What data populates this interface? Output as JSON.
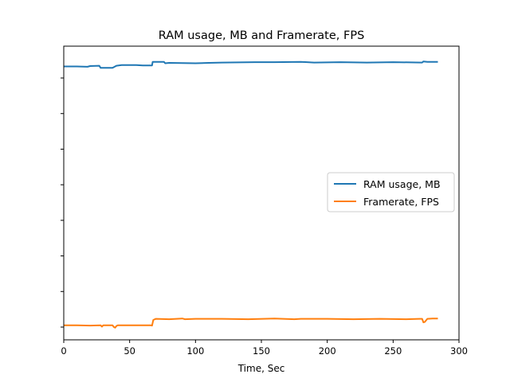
{
  "chart_data": {
    "type": "line",
    "title": "RAM usage, MB and Framerate, FPS",
    "xlabel": "Time, Sec",
    "ylabel": "",
    "xlim": [
      0,
      300
    ],
    "ylim": [
      -3.5,
      79
    ],
    "x_ticks": [
      0,
      50,
      100,
      150,
      200,
      250,
      300
    ],
    "y_ticks_count": 8,
    "y_tick_labels_shown": false,
    "grid": false,
    "legend_position": "center-right",
    "series": [
      {
        "name": "RAM usage, MB",
        "color": "#1f77b4",
        "points": [
          [
            0,
            73.3
          ],
          [
            10,
            73.3
          ],
          [
            18,
            73.2
          ],
          [
            20,
            73.4
          ],
          [
            27,
            73.5
          ],
          [
            28,
            72.9
          ],
          [
            37,
            72.9
          ],
          [
            40,
            73.5
          ],
          [
            44,
            73.7
          ],
          [
            55,
            73.7
          ],
          [
            60,
            73.6
          ],
          [
            67,
            73.6
          ],
          [
            67.5,
            74.6
          ],
          [
            76,
            74.6
          ],
          [
            77,
            74.2
          ],
          [
            80,
            74.3
          ],
          [
            100,
            74.2
          ],
          [
            110,
            74.3
          ],
          [
            120,
            74.4
          ],
          [
            145,
            74.5
          ],
          [
            160,
            74.5
          ],
          [
            180,
            74.6
          ],
          [
            190,
            74.4
          ],
          [
            210,
            74.5
          ],
          [
            230,
            74.4
          ],
          [
            250,
            74.5
          ],
          [
            272,
            74.4
          ],
          [
            273,
            74.7
          ],
          [
            276,
            74.6
          ],
          [
            284,
            74.6
          ]
        ]
      },
      {
        "name": "Framerate, FPS",
        "color": "#ff7f0e",
        "points": [
          [
            0,
            0.6
          ],
          [
            10,
            0.6
          ],
          [
            20,
            0.5
          ],
          [
            28,
            0.6
          ],
          [
            29,
            0.2
          ],
          [
            30,
            0.6
          ],
          [
            37,
            0.6
          ],
          [
            38,
            0.1
          ],
          [
            39,
            -0.1
          ],
          [
            40,
            0.4
          ],
          [
            41,
            0.6
          ],
          [
            55,
            0.6
          ],
          [
            66,
            0.6
          ],
          [
            67,
            0.5
          ],
          [
            68,
            2.1
          ],
          [
            70,
            2.4
          ],
          [
            80,
            2.3
          ],
          [
            90,
            2.5
          ],
          [
            92,
            2.3
          ],
          [
            100,
            2.4
          ],
          [
            120,
            2.4
          ],
          [
            140,
            2.3
          ],
          [
            160,
            2.5
          ],
          [
            175,
            2.3
          ],
          [
            180,
            2.4
          ],
          [
            200,
            2.4
          ],
          [
            220,
            2.3
          ],
          [
            240,
            2.4
          ],
          [
            260,
            2.3
          ],
          [
            270,
            2.4
          ],
          [
            272,
            2.4
          ],
          [
            273,
            1.4
          ],
          [
            274,
            1.5
          ],
          [
            276,
            2.4
          ],
          [
            280,
            2.5
          ],
          [
            284,
            2.5
          ]
        ]
      }
    ]
  }
}
